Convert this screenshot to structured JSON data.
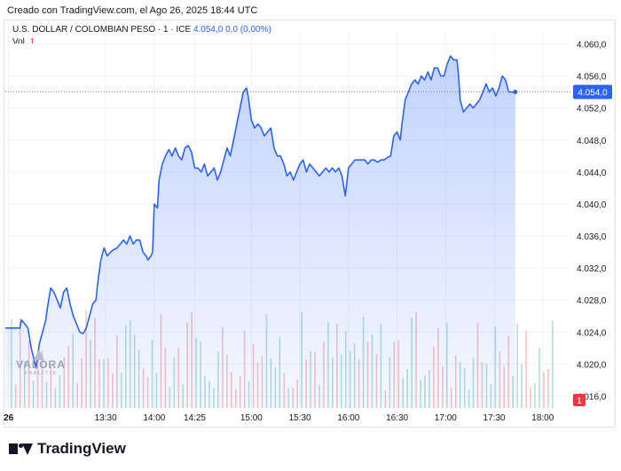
{
  "header": {
    "created_text": "Creado con TradingView.com, el Ago 26, 2025 18:44 UTC"
  },
  "legend": {
    "symbol_text": "U.S. DOLLAR / COLOMBIAN PESO · 1 · ICE",
    "last_value": "4.054,0",
    "change": "0,0 (0,00%)",
    "vol_label": "Vol.",
    "vol_value": "1"
  },
  "price_tag": "4.054,0",
  "volume_tag": "1",
  "watermark": {
    "brand": "VALORA",
    "sub": "ANALITIK"
  },
  "footer": {
    "brand": "TradingView"
  },
  "colors": {
    "line": "#2962ff",
    "area_top": "#2962ff",
    "vol_up": "#26a69a",
    "vol_down": "#ef5350",
    "price_tag_bg": "#2962ff",
    "vol_tag_bg": "#f23645"
  },
  "chart_data": {
    "type": "area",
    "y_axis_labels": [
      "4.060,0",
      "4.056,0",
      "4.052,0",
      "4.048,0",
      "4.044,0",
      "4.040,0",
      "4.036,0",
      "4.032,0",
      "4.028,0",
      "4.024,0",
      "4.020,0",
      "4.016,0"
    ],
    "ylim": [
      4014.5,
      4061.5
    ],
    "x_labels": [
      {
        "t": 0,
        "label": "26"
      },
      {
        "t": 60,
        "label": "13:30"
      },
      {
        "t": 90,
        "label": "14:00"
      },
      {
        "t": 115,
        "label": "14:25"
      },
      {
        "t": 150,
        "label": "15:00"
      },
      {
        "t": 180,
        "label": "15:30"
      },
      {
        "t": 210,
        "label": "16:00"
      },
      {
        "t": 240,
        "label": "16:30"
      },
      {
        "t": 270,
        "label": "17:00"
      },
      {
        "t": 300,
        "label": "17:30"
      },
      {
        "t": 330,
        "label": "18:00"
      }
    ],
    "xlim": [
      -2,
      346
    ],
    "last_value": 4054.0,
    "series": [
      {
        "points": [
          [
            -2,
            4024.5
          ],
          [
            7,
            4024.5
          ],
          [
            8,
            4025.5
          ],
          [
            12,
            4024.5
          ],
          [
            14,
            4022
          ],
          [
            17,
            4019.5
          ],
          [
            19,
            4022.5
          ],
          [
            21,
            4024
          ],
          [
            23,
            4025.5
          ],
          [
            24,
            4027
          ],
          [
            26,
            4029.5
          ],
          [
            28,
            4029
          ],
          [
            30,
            4028
          ],
          [
            32,
            4027
          ],
          [
            34,
            4029
          ],
          [
            36,
            4029.5
          ],
          [
            38,
            4027.5
          ],
          [
            40,
            4026
          ],
          [
            42,
            4025
          ],
          [
            44,
            4024
          ],
          [
            46,
            4023.8
          ],
          [
            48,
            4024.5
          ],
          [
            50,
            4026
          ],
          [
            52,
            4027.5
          ],
          [
            54,
            4028
          ],
          [
            55,
            4030
          ],
          [
            57,
            4033
          ],
          [
            59,
            4034.5
          ],
          [
            61,
            4033.5
          ],
          [
            63,
            4034
          ],
          [
            65,
            4034.3
          ],
          [
            67,
            4034.5
          ],
          [
            69,
            4035
          ],
          [
            71,
            4035.5
          ],
          [
            73,
            4035
          ],
          [
            75,
            4036
          ],
          [
            77,
            4035
          ],
          [
            79,
            4035.5
          ],
          [
            81,
            4035.5
          ],
          [
            83,
            4034
          ],
          [
            85,
            4033.5
          ],
          [
            86,
            4033
          ],
          [
            88,
            4033.5
          ],
          [
            89,
            4034
          ],
          [
            90,
            4040
          ],
          [
            92,
            4039.5
          ],
          [
            93,
            4043
          ],
          [
            95,
            4045
          ],
          [
            97,
            4046
          ],
          [
            99,
            4046.8
          ],
          [
            101,
            4046
          ],
          [
            103,
            4047
          ],
          [
            105,
            4046
          ],
          [
            107,
            4045.5
          ],
          [
            109,
            4047
          ],
          [
            111,
            4047.3
          ],
          [
            113,
            4046.5
          ],
          [
            115,
            4044.5
          ],
          [
            117,
            4044.5
          ],
          [
            119,
            4044
          ],
          [
            121,
            4045
          ],
          [
            123,
            4043.5
          ],
          [
            125,
            4044
          ],
          [
            127,
            4044.5
          ],
          [
            129,
            4043
          ],
          [
            131,
            4044
          ],
          [
            133,
            4045.5
          ],
          [
            135,
            4047
          ],
          [
            137,
            4046
          ],
          [
            139,
            4048
          ],
          [
            141,
            4050
          ],
          [
            143,
            4052
          ],
          [
            145,
            4054
          ],
          [
            147,
            4054.5
          ],
          [
            148,
            4053.5
          ],
          [
            149,
            4052
          ],
          [
            150,
            4050.5
          ],
          [
            152,
            4049.5
          ],
          [
            154,
            4050
          ],
          [
            156,
            4049.5
          ],
          [
            158,
            4048.5
          ],
          [
            160,
            4049
          ],
          [
            162,
            4049.5
          ],
          [
            164,
            4047
          ],
          [
            166,
            4046
          ],
          [
            168,
            4046
          ],
          [
            170,
            4045
          ],
          [
            172,
            4043.5
          ],
          [
            174,
            4044
          ],
          [
            176,
            4043
          ],
          [
            178,
            4044
          ],
          [
            180,
            4045
          ],
          [
            182,
            4045.5
          ],
          [
            184,
            4044
          ],
          [
            186,
            4045
          ],
          [
            188,
            4044.5
          ],
          [
            190,
            4044
          ],
          [
            192,
            4043.5
          ],
          [
            194,
            4044
          ],
          [
            196,
            4044.5
          ],
          [
            198,
            4044
          ],
          [
            200,
            4044.5
          ],
          [
            202,
            4044
          ],
          [
            204,
            4044.5
          ],
          [
            206,
            4043.5
          ],
          [
            208,
            4041
          ],
          [
            210,
            4044.5
          ],
          [
            212,
            4045
          ],
          [
            214,
            4045.5
          ],
          [
            216,
            4045.5
          ],
          [
            218,
            4045.5
          ],
          [
            220,
            4045.5
          ],
          [
            222,
            4045
          ],
          [
            224,
            4045.5
          ],
          [
            226,
            4045.5
          ],
          [
            228,
            4045.2
          ],
          [
            230,
            4045.5
          ],
          [
            232,
            4045.5
          ],
          [
            234,
            4045.8
          ],
          [
            236,
            4046
          ],
          [
            238,
            4048.5
          ],
          [
            240,
            4049
          ],
          [
            242,
            4048
          ],
          [
            243,
            4050
          ],
          [
            245,
            4053
          ],
          [
            247,
            4054
          ],
          [
            249,
            4055
          ],
          [
            251,
            4055.5
          ],
          [
            253,
            4055
          ],
          [
            255,
            4056
          ],
          [
            257,
            4055.5
          ],
          [
            259,
            4056.5
          ],
          [
            261,
            4055.5
          ],
          [
            263,
            4057
          ],
          [
            265,
            4057
          ],
          [
            267,
            4056
          ],
          [
            269,
            4056
          ],
          [
            271,
            4057.5
          ],
          [
            273,
            4058.5
          ],
          [
            275,
            4058
          ],
          [
            277,
            4058
          ],
          [
            278,
            4056
          ],
          [
            279,
            4053
          ],
          [
            281,
            4051.5
          ],
          [
            283,
            4052
          ],
          [
            285,
            4052.5
          ],
          [
            287,
            4052
          ],
          [
            289,
            4052.5
          ],
          [
            291,
            4053
          ],
          [
            293,
            4054
          ],
          [
            295,
            4055
          ],
          [
            297,
            4054
          ],
          [
            299,
            4054.5
          ],
          [
            300,
            4054
          ],
          [
            301,
            4053.5
          ],
          [
            303,
            4054.5
          ],
          [
            305,
            4056
          ],
          [
            307,
            4055.5
          ],
          [
            309,
            4054
          ],
          [
            311,
            4054
          ],
          [
            313,
            4054
          ]
        ]
      }
    ],
    "volume": {
      "bar_count": 124,
      "range": [
        0,
        6
      ],
      "note_values": "volume bars per interval, values 0-6 (relative)"
    }
  }
}
